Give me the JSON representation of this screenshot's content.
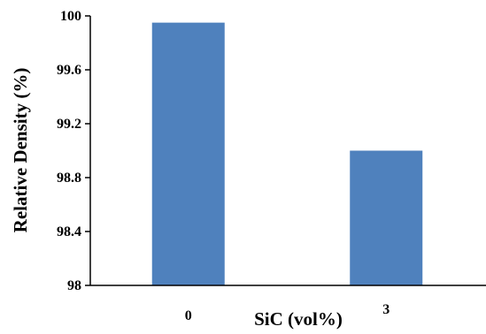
{
  "chart_data": {
    "type": "bar",
    "categories": [
      "0",
      "3"
    ],
    "values": [
      99.95,
      99.0
    ],
    "title": "",
    "xlabel": "SiC (vol%)",
    "ylabel": "Relative Density (%)",
    "ylim": [
      98,
      100
    ],
    "yticks": [
      "98",
      "98.4",
      "98.8",
      "99.2",
      "99.6",
      "100"
    ],
    "bar_color": "#4f81bd",
    "grid": false,
    "legend": "none"
  }
}
